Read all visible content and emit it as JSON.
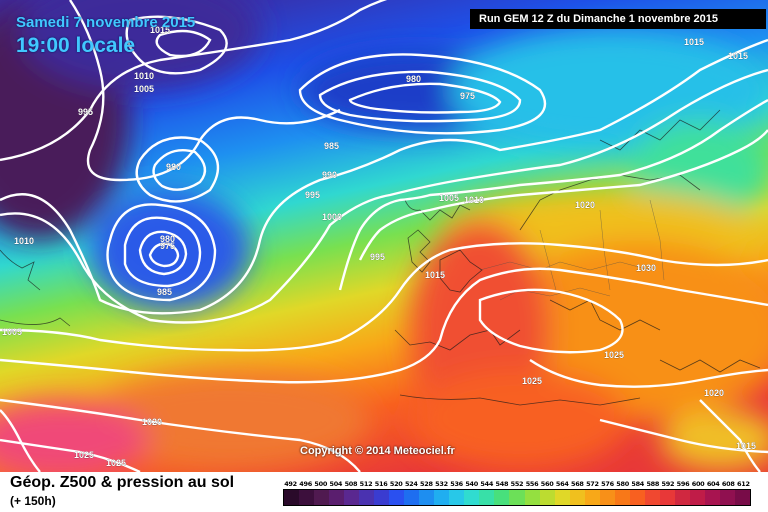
{
  "header": {
    "date": "Samedi 7 novembre 2015",
    "time": "19:00 locale",
    "run": "Run GEM 12 Z du Dimanche 1 novembre 2015"
  },
  "copyright": "Copyright © 2014 Meteociel.fr",
  "legend": {
    "title": "Géop. Z500 & pression au sol",
    "subtitle": "(+ 150h)",
    "values": [
      "492",
      "496",
      "500",
      "504",
      "508",
      "512",
      "516",
      "520",
      "524",
      "528",
      "532",
      "536",
      "540",
      "544",
      "548",
      "552",
      "556",
      "560",
      "564",
      "568",
      "572",
      "576",
      "580",
      "584",
      "588",
      "592",
      "596",
      "600",
      "604",
      "608",
      "612"
    ],
    "colors": [
      "#2a0a2a",
      "#3c0f3c",
      "#501a50",
      "#5a1e6e",
      "#5a2890",
      "#4a32b0",
      "#3a3cd0",
      "#2a50f0",
      "#1e6ef0",
      "#1e8ef0",
      "#20aef0",
      "#28c8e8",
      "#30dcd0",
      "#38e0a8",
      "#48e07c",
      "#6ce058",
      "#94e040",
      "#bcdc30",
      "#e0d828",
      "#f0c01e",
      "#f8a818",
      "#f89018",
      "#f87818",
      "#f86020",
      "#f04830",
      "#e83838",
      "#d02840",
      "#c01c48",
      "#a81450",
      "#901050",
      "#780c48"
    ]
  },
  "isobar_labels": [
    {
      "id": "l1010a",
      "text": "1010"
    },
    {
      "id": "l1005a",
      "text": "1005"
    },
    {
      "id": "l995a",
      "text": "995"
    },
    {
      "id": "l980a",
      "text": "980"
    },
    {
      "id": "l980b",
      "text": "980"
    },
    {
      "id": "l975a",
      "text": "975"
    },
    {
      "id": "l975b",
      "text": "975"
    },
    {
      "id": "l980c",
      "text": "980"
    },
    {
      "id": "l985a",
      "text": "985"
    },
    {
      "id": "l985b",
      "text": "985"
    },
    {
      "id": "l990a",
      "text": "990"
    },
    {
      "id": "l995b",
      "text": "995"
    },
    {
      "id": "l1000a",
      "text": "1000"
    },
    {
      "id": "l995c",
      "text": "995"
    },
    {
      "id": "l1005b",
      "text": "1005"
    },
    {
      "id": "l1010b",
      "text": "1010"
    },
    {
      "id": "l1015a",
      "text": "1015"
    },
    {
      "id": "l1020a",
      "text": "1020"
    },
    {
      "id": "l1030a",
      "text": "1030"
    },
    {
      "id": "l1025a",
      "text": "1025"
    },
    {
      "id": "l1025b",
      "text": "1025"
    },
    {
      "id": "l1020b",
      "text": "1020"
    },
    {
      "id": "l1015b",
      "text": "1015"
    },
    {
      "id": "l1015c",
      "text": "1015"
    },
    {
      "id": "l1015d",
      "text": "1015"
    },
    {
      "id": "l1010c",
      "text": "1010"
    },
    {
      "id": "l1005c",
      "text": "1005"
    },
    {
      "id": "l1020c",
      "text": "1020"
    },
    {
      "id": "l1025c",
      "text": "1025"
    },
    {
      "id": "l1025d",
      "text": "1025"
    },
    {
      "id": "l1015e",
      "text": "1015"
    }
  ]
}
